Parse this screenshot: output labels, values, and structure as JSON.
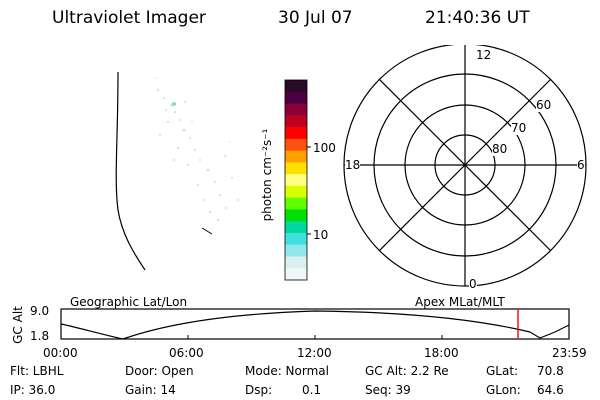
{
  "header": {
    "title": "Ultraviolet Imager",
    "date": "30 Jul 07",
    "time": "21:40:36 UT"
  },
  "colorbar": {
    "unit_label": "photon cm⁻²s⁻¹",
    "tick_100": "100",
    "tick_10": "10",
    "colors": [
      "#2a0a2a",
      "#4a0040",
      "#8a0038",
      "#c0001c",
      "#ff0000",
      "#ff5010",
      "#ffa000",
      "#ffe000",
      "#ffff80",
      "#d8ff00",
      "#60ff00",
      "#00e000",
      "#00d8a0",
      "#40e0e0",
      "#90e8e8",
      "#d8f0f0",
      "#eef8f8"
    ]
  },
  "polar": {
    "ring_labels": [
      "60",
      "70",
      "80"
    ],
    "mlt_labels": {
      "top": "12",
      "left": "18",
      "right": "6",
      "bottom": "0"
    }
  },
  "timeline": {
    "left_label": "Geographic Lat/Lon",
    "right_label": "Apex MLat/MLT",
    "axis_title": "GC Alt",
    "y_top": "9.0",
    "y_bottom": "1.8",
    "x_ticks": [
      "00:00",
      "06:00",
      "12:00",
      "18:00",
      "23:59"
    ],
    "marker_color": "#ff0000"
  },
  "info": {
    "filter": "Flt: LBHL",
    "door": "Door: Open",
    "mode": "Mode: Normal",
    "gc_alt": "GC Alt: 2.2 Re",
    "glat_label": "GLat:",
    "glat_value": "70.8",
    "ip": "IP: 36.0",
    "gain": "Gain: 14",
    "dsp_label": "Dsp:",
    "dsp_value": "0.1",
    "seq": "Seq: 39",
    "glon_label": "GLon:",
    "glon_value": "64.6"
  }
}
